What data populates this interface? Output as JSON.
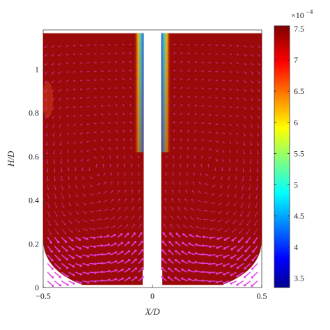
{
  "chart_data": {
    "type": "heatmap",
    "title": "",
    "xlabel": "X/D",
    "ylabel": "H/D",
    "xlim": [
      -0.5,
      0.5
    ],
    "ylim": [
      0,
      1.18
    ],
    "x_ticks": [
      -0.5,
      0,
      0.5
    ],
    "x_tick_labels": [
      "−0.5",
      "0",
      "0.5"
    ],
    "y_ticks": [
      0,
      0.2,
      0.4,
      0.6,
      0.8,
      1
    ],
    "y_tick_labels": [
      "0",
      "0.2",
      "0.4",
      "0.6",
      "0.8",
      "1"
    ],
    "colorbar": {
      "range": [
        3.35,
        7.55
      ],
      "ticks": [
        3.5,
        4,
        4.5,
        5,
        5.5,
        6,
        6.5,
        7,
        7.5
      ],
      "tick_labels": [
        "3.5",
        "4",
        "4.5",
        "5",
        "5.5",
        "6",
        "6.5",
        "7",
        "7.5"
      ],
      "exponent_label": "×10",
      "exponent_power": "−4",
      "colormap": "jet"
    },
    "field_value_dominant": 7.45,
    "central_gap_x": [
      -0.04,
      0.04
    ],
    "vector_color": "#e040e0",
    "grid": false
  }
}
